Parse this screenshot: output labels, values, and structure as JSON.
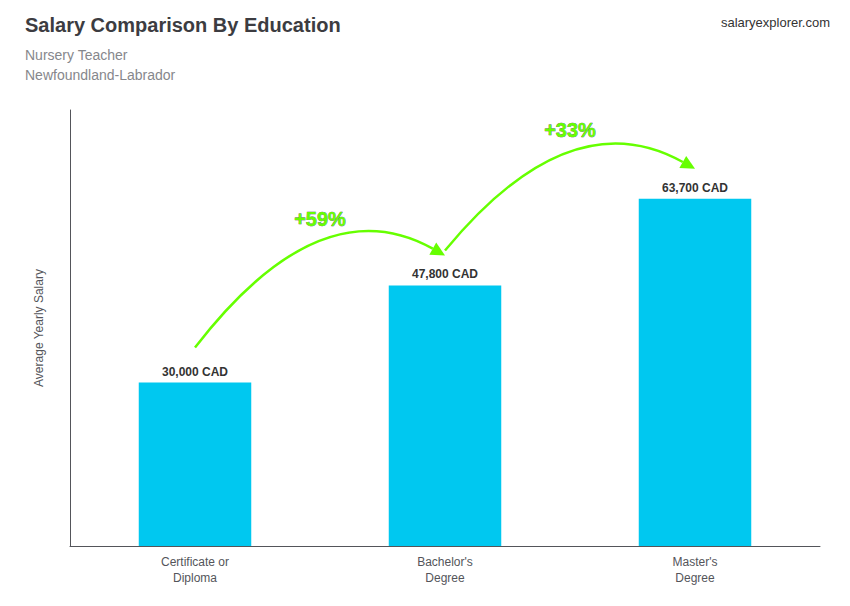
{
  "chart_data": {
    "type": "bar",
    "title": "Salary Comparison By Education",
    "subtitle": [
      "Nursery Teacher",
      "Newfoundland-Labrador"
    ],
    "ylabel": "Average Yearly Salary",
    "categories": [
      "Certificate or\nDiploma",
      "Bachelor's\nDegree",
      "Master's\nDegree"
    ],
    "values": [
      30000,
      47800,
      63700
    ],
    "value_labels": [
      "30,000 CAD",
      "47,800 CAD",
      "63,700 CAD"
    ],
    "data_labels": true,
    "color": "#00c8f0",
    "ylim": [
      0,
      80000
    ],
    "grid": false,
    "tick_labels": "x",
    "annotations": [
      {
        "text": "+59%",
        "color": "#66ff00"
      },
      {
        "text": "+33%",
        "color": "#66ff00"
      }
    ],
    "source": "salaryexplorer.com"
  }
}
